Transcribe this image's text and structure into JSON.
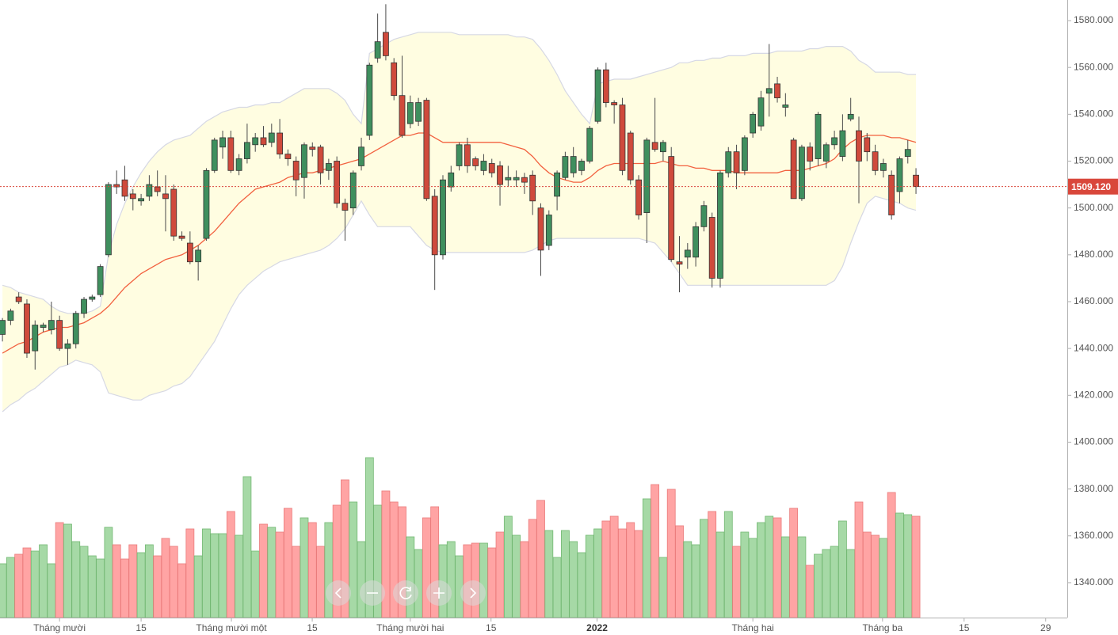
{
  "chart_data": {
    "type": "candlestick",
    "open": [
      1446,
      1452,
      1462,
      1459,
      1439,
      1449,
      1448,
      1452,
      1440,
      1442,
      1455,
      1461,
      1463,
      1480,
      1510,
      1512,
      1506,
      1503,
      1505,
      1509,
      1506,
      1508,
      1488,
      1485,
      1477,
      1487,
      1516,
      1526,
      1530,
      1516,
      1521,
      1527,
      1530,
      1528,
      1532,
      1523,
      1520,
      1513,
      1526,
      1526,
      1516,
      1520,
      1502,
      1500,
      1518,
      1531,
      1564,
      1575,
      1562,
      1548,
      1536,
      1537,
      1546,
      1505,
      1480,
      1509,
      1518,
      1527,
      1521,
      1516,
      1519,
      1518,
      1512,
      1512,
      1513,
      1514,
      1500,
      1484,
      1505,
      1513,
      1515,
      1516,
      1520,
      1537,
      1559,
      1545,
      1544,
      1532,
      1512,
      1498,
      1528,
      1524,
      1522,
      1477,
      1479,
      1479,
      1492,
      1496,
      1470,
      1515,
      1524,
      1516,
      1532,
      1535,
      1549,
      1553,
      1543,
      1529,
      1504,
      1526,
      1521,
      1520,
      1527,
      1522,
      1538,
      1533,
      1530,
      1524,
      1516,
      1514,
      1507,
      1522,
      1514
    ],
    "high": [
      1453,
      1457,
      1464,
      1461,
      1452,
      1451,
      1460,
      1454,
      1444,
      1456,
      1462,
      1463,
      1476,
      1511,
      1516,
      1518,
      1508,
      1506,
      1514,
      1516,
      1514,
      1510,
      1490,
      1490,
      1484,
      1517,
      1530,
      1533,
      1533,
      1523,
      1536,
      1532,
      1535,
      1536,
      1538,
      1525,
      1522,
      1528,
      1528,
      1527,
      1521,
      1522,
      1504,
      1516,
      1530,
      1562,
      1583,
      1587,
      1564,
      1565,
      1548,
      1547,
      1547,
      1508,
      1514,
      1518,
      1528,
      1530,
      1522,
      1523,
      1521,
      1520,
      1518,
      1516,
      1515,
      1516,
      1502,
      1499,
      1516,
      1524,
      1526,
      1521,
      1535,
      1560,
      1562,
      1546,
      1547,
      1533,
      1514,
      1530,
      1547,
      1529,
      1526,
      1488,
      1485,
      1494,
      1503,
      1498,
      1516,
      1526,
      1527,
      1531,
      1541,
      1550,
      1570,
      1556,
      1549,
      1530,
      1527,
      1528,
      1541,
      1528,
      1533,
      1540,
      1547,
      1539,
      1532,
      1527,
      1521,
      1516,
      1522,
      1529,
      1517
    ],
    "low": [
      1443,
      1450,
      1459,
      1436,
      1431,
      1447,
      1446,
      1439,
      1433,
      1440,
      1453,
      1460,
      1462,
      1479,
      1506,
      1503,
      1499,
      1501,
      1503,
      1505,
      1490,
      1486,
      1486,
      1476,
      1469,
      1486,
      1515,
      1521,
      1515,
      1514,
      1519,
      1524,
      1526,
      1526,
      1521,
      1518,
      1505,
      1504,
      1522,
      1510,
      1512,
      1500,
      1486,
      1497,
      1516,
      1529,
      1562,
      1563,
      1546,
      1530,
      1534,
      1535,
      1503,
      1465,
      1478,
      1507,
      1516,
      1515,
      1516,
      1514,
      1513,
      1501,
      1509,
      1509,
      1506,
      1497,
      1471,
      1482,
      1499,
      1512,
      1513,
      1514,
      1519,
      1536,
      1543,
      1536,
      1514,
      1510,
      1495,
      1485,
      1524,
      1520,
      1477,
      1464,
      1474,
      1475,
      1490,
      1466,
      1466,
      1513,
      1508,
      1514,
      1530,
      1533,
      1539,
      1545,
      1539,
      1504,
      1503,
      1516,
      1518,
      1517,
      1525,
      1520,
      1537,
      1502,
      1520,
      1514,
      1513,
      1495,
      1502,
      1519,
      1506
    ],
    "close": [
      1452,
      1456,
      1460,
      1438,
      1450,
      1450,
      1452,
      1440,
      1442,
      1455,
      1461,
      1462,
      1475,
      1510,
      1509,
      1505,
      1504,
      1504,
      1510,
      1507,
      1504,
      1488,
      1487,
      1477,
      1482,
      1516,
      1529,
      1530,
      1516,
      1521,
      1528,
      1530,
      1527,
      1532,
      1523,
      1521,
      1512,
      1527,
      1525,
      1515,
      1519,
      1502,
      1499,
      1515,
      1526,
      1561,
      1571,
      1565,
      1548,
      1531,
      1545,
      1545,
      1504,
      1480,
      1512,
      1515,
      1527,
      1518,
      1518,
      1520,
      1515,
      1510,
      1513,
      1513,
      1511,
      1503,
      1482,
      1497,
      1515,
      1522,
      1522,
      1520,
      1534,
      1559,
      1545,
      1544,
      1516,
      1512,
      1497,
      1529,
      1525,
      1528,
      1478,
      1476,
      1482,
      1492,
      1501,
      1470,
      1515,
      1524,
      1515,
      1530,
      1540,
      1547,
      1551,
      1547,
      1544,
      1504,
      1526,
      1520,
      1540,
      1527,
      1530,
      1533,
      1540,
      1520,
      1524,
      1516,
      1519,
      1497,
      1521,
      1525,
      1509.12
    ],
    "volume": [
      34,
      38,
      40,
      44,
      42,
      46,
      34,
      60,
      59,
      48,
      45,
      39,
      37,
      57,
      46,
      37,
      46,
      41,
      46,
      39,
      50,
      45,
      34,
      56,
      39,
      56,
      53,
      53,
      67,
      52,
      89,
      42,
      59,
      57,
      54,
      69,
      45,
      63,
      60,
      45,
      60,
      71,
      87,
      73,
      48,
      101,
      71,
      80,
      73,
      70,
      51,
      43,
      63,
      70,
      46,
      48,
      39,
      46,
      47,
      47,
      44,
      54,
      64,
      52,
      48,
      62,
      74,
      55,
      38,
      55,
      48,
      41,
      52,
      56,
      61,
      64,
      56,
      60,
      55,
      75,
      84,
      38,
      81,
      58,
      48,
      46,
      62,
      67,
      54,
      67,
      45,
      54,
      50,
      60,
      64,
      63,
      51,
      69,
      51,
      33,
      40,
      43,
      45,
      61,
      43,
      73,
      54,
      52,
      50,
      79,
      66,
      65,
      64
    ],
    "colors": {
      "up": "#3f8f5e",
      "down": "#cf4a3c",
      "up_volume": "#a6d9a6",
      "down_volume": "#ffa4a4",
      "band_fill": "#fffde1",
      "band_line": "#d6d8e4",
      "middle": "#f2613f"
    },
    "bands": {
      "upper": [
        1467,
        1466,
        1464,
        1463,
        1462,
        1461,
        1458,
        1456,
        1455,
        1455,
        1455,
        1456,
        1458,
        1480,
        1493,
        1502,
        1509,
        1515,
        1520,
        1524,
        1527,
        1529,
        1530,
        1531,
        1534,
        1537,
        1539,
        1541,
        1542,
        1543,
        1543,
        1544,
        1544,
        1545,
        1545,
        1547,
        1549,
        1551,
        1551,
        1551,
        1551,
        1549,
        1546,
        1540,
        1536,
        1566,
        1568,
        1570,
        1572,
        1573,
        1574,
        1575,
        1575,
        1575,
        1575,
        1575,
        1574,
        1574,
        1574,
        1574,
        1574,
        1574,
        1574,
        1573,
        1573,
        1572,
        1568,
        1563,
        1557,
        1550,
        1545,
        1540,
        1536,
        1553,
        1554,
        1555,
        1555,
        1555,
        1556,
        1557,
        1558,
        1559,
        1560,
        1562,
        1562,
        1563,
        1563,
        1564,
        1564,
        1565,
        1565,
        1565,
        1566,
        1566,
        1566,
        1567,
        1567,
        1567,
        1567,
        1568,
        1568,
        1569,
        1569,
        1569,
        1567,
        1563,
        1561,
        1558,
        1558,
        1558,
        1558,
        1557,
        1557
      ],
      "middle": [
        1438,
        1440,
        1442,
        1443,
        1445,
        1447,
        1448,
        1449,
        1449,
        1450,
        1451,
        1453,
        1455,
        1458,
        1462,
        1466,
        1469,
        1472,
        1474,
        1476,
        1478,
        1479,
        1480,
        1482,
        1484,
        1487,
        1490,
        1494,
        1498,
        1502,
        1505,
        1508,
        1509,
        1510,
        1511,
        1513,
        1514,
        1515,
        1515,
        1516,
        1517,
        1518,
        1519,
        1520,
        1521,
        1523,
        1525,
        1527,
        1529,
        1531,
        1531,
        1532,
        1532,
        1530,
        1528,
        1528,
        1528,
        1528,
        1528,
        1528,
        1528,
        1528,
        1527,
        1526,
        1525,
        1522,
        1518,
        1515,
        1513,
        1512,
        1511,
        1511,
        1513,
        1516,
        1518,
        1519,
        1519,
        1519,
        1519,
        1519,
        1519,
        1520,
        1519,
        1518,
        1518,
        1517,
        1517,
        1516,
        1516,
        1516,
        1515,
        1515,
        1515,
        1515,
        1515,
        1515,
        1516,
        1516,
        1516,
        1517,
        1518,
        1519,
        1521,
        1525,
        1528,
        1530,
        1531,
        1531,
        1531,
        1530,
        1530,
        1529,
        1528
      ],
      "lower": [
        1413,
        1416,
        1418,
        1421,
        1423,
        1426,
        1429,
        1432,
        1433,
        1435,
        1434,
        1433,
        1430,
        1421,
        1420,
        1419,
        1418,
        1418,
        1420,
        1421,
        1422,
        1424,
        1425,
        1428,
        1433,
        1438,
        1443,
        1450,
        1457,
        1463,
        1467,
        1470,
        1473,
        1475,
        1477,
        1478,
        1479,
        1480,
        1481,
        1482,
        1484,
        1487,
        1491,
        1497,
        1503,
        1497,
        1492,
        1492,
        1492,
        1492,
        1492,
        1488,
        1484,
        1482,
        1481,
        1481,
        1481,
        1481,
        1481,
        1481,
        1481,
        1481,
        1481,
        1481,
        1481,
        1482,
        1484,
        1486,
        1487,
        1487,
        1487,
        1487,
        1487,
        1487,
        1487,
        1487,
        1487,
        1487,
        1487,
        1486,
        1485,
        1481,
        1477,
        1472,
        1467,
        1467,
        1467,
        1467,
        1467,
        1467,
        1467,
        1467,
        1467,
        1467,
        1467,
        1467,
        1467,
        1467,
        1467,
        1467,
        1467,
        1467,
        1469,
        1475,
        1485,
        1494,
        1502,
        1505,
        1504,
        1503,
        1502,
        1500,
        1499
      ]
    },
    "xlim": [
      -0.3,
      130.55
    ],
    "xticks": [
      {
        "value": 7,
        "label": "Tháng mười"
      },
      {
        "value": 17,
        "label": "15"
      },
      {
        "value": 28.07,
        "label": "Tháng mười một"
      },
      {
        "value": 37.98,
        "label": "15"
      },
      {
        "value": 50,
        "label": "Tháng mười hai"
      },
      {
        "value": 59.9,
        "label": "15"
      },
      {
        "value": 72.9,
        "label": "2022",
        "bold": true
      },
      {
        "value": 92,
        "label": "Tháng hai"
      },
      {
        "value": 107.9,
        "label": "Tháng ba"
      },
      {
        "value": 117.9,
        "label": "15"
      },
      {
        "value": 127.9,
        "label": "29"
      }
    ],
    "ylim": [
      1325.1,
      1588.8
    ],
    "yticks": [
      {
        "value": 1340,
        "label": "1340.000"
      },
      {
        "value": 1360,
        "label": "1360.000"
      },
      {
        "value": 1380,
        "label": "1380.000"
      },
      {
        "value": 1400,
        "label": "1400.000"
      },
      {
        "value": 1420,
        "label": "1420.000"
      },
      {
        "value": 1440,
        "label": "1440.000"
      },
      {
        "value": 1460,
        "label": "1460.000"
      },
      {
        "value": 1480,
        "label": "1480.000"
      },
      {
        "value": 1500,
        "label": "1500.000"
      },
      {
        "value": 1520,
        "label": "1520.000"
      },
      {
        "value": 1540,
        "label": "1540.000"
      },
      {
        "value": 1560,
        "label": "1560.000"
      },
      {
        "value": 1580,
        "label": "1580.000"
      }
    ],
    "price_line": {
      "value": 1509.12,
      "label": "1509.120",
      "color": "#d9473b"
    }
  }
}
